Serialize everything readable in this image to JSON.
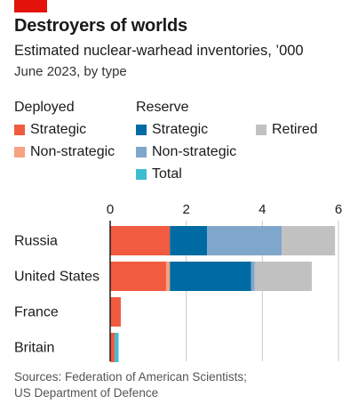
{
  "title": "Destroyers of worlds",
  "subtitle": "Estimated nuclear-warhead inventories, ’000",
  "subtitle2": "June 2023, by type",
  "legend": {
    "deployed_heading": "Deployed",
    "reserve_heading": "Reserve",
    "items": {
      "deployed_strategic": "Strategic",
      "deployed_nonstrategic": "Non-strategic",
      "reserve_strategic": "Strategic",
      "reserve_nonstrategic": "Non-strategic",
      "reserve_total": "Total",
      "retired": "Retired"
    }
  },
  "colors": {
    "tag": "#e3120b",
    "deployed_strategic": "#f15b40",
    "deployed_nonstrategic": "#f6a283",
    "reserve_strategic": "#006ba2",
    "reserve_nonstrategic": "#7fa6cb",
    "reserve_total": "#3ebcd2",
    "retired": "#c1c1c1",
    "grid": "#c8c8c8",
    "axis": "#1a1a1a"
  },
  "chart_data": {
    "type": "bar",
    "orientation": "horizontal",
    "stacked": true,
    "categories": [
      "Russia",
      "United States",
      "France",
      "Britain"
    ],
    "xlim": [
      0,
      6
    ],
    "xticks": [
      "0",
      "2",
      "4",
      "6"
    ],
    "grid": true,
    "series": [
      {
        "name": "Strategic (deployed)",
        "key": "deployed_strategic",
        "values": [
          1.57,
          1.47,
          0.28,
          0.12
        ]
      },
      {
        "name": "Non-strategic (deployed)",
        "key": "deployed_nonstrategic",
        "values": [
          0.0,
          0.1,
          0.0,
          0.0
        ]
      },
      {
        "name": "Strategic (reserve)",
        "key": "reserve_strategic",
        "values": [
          0.98,
          2.13,
          0.0,
          0.0
        ]
      },
      {
        "name": "Non-strategic (reserve)",
        "key": "reserve_nonstrategic",
        "values": [
          1.96,
          0.1,
          0.0,
          0.0
        ]
      },
      {
        "name": "Total (reserve)",
        "key": "reserve_total",
        "values": [
          0.0,
          0.0,
          0.0,
          0.1
        ]
      },
      {
        "name": "Retired",
        "key": "retired",
        "values": [
          1.4,
          1.5,
          0.0,
          0.0
        ]
      }
    ]
  },
  "source_lines": [
    "Sources: Federation of American Scientists;",
    "US Department of Defence"
  ]
}
